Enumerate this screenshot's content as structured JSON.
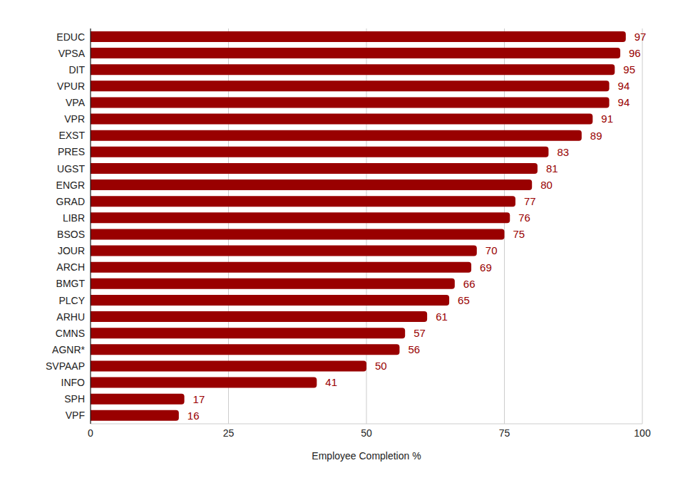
{
  "chart_data": {
    "type": "bar",
    "orientation": "horizontal",
    "x_label": "Employee Completion %",
    "categories": [
      "EDUC",
      "VPSA",
      "DIT",
      "VPUR",
      "VPA",
      "VPR",
      "EXST",
      "PRES",
      "UGST",
      "ENGR",
      "GRAD",
      "LIBR",
      "BSOS",
      "JOUR",
      "ARCH",
      "BMGT",
      "PLCY",
      "ARHU",
      "CMNS",
      "AGNR*",
      "SVPAAP",
      "INFO",
      "SPH",
      "VPF"
    ],
    "values": [
      97,
      96,
      95,
      94,
      94,
      91,
      89,
      83,
      81,
      80,
      77,
      76,
      75,
      70,
      69,
      66,
      65,
      61,
      57,
      56,
      50,
      41,
      17,
      16
    ],
    "color": "#990000",
    "xlim": [
      0,
      100
    ],
    "xticks": [
      0,
      25,
      50,
      75,
      100
    ],
    "grid": true,
    "data_labels": true
  }
}
